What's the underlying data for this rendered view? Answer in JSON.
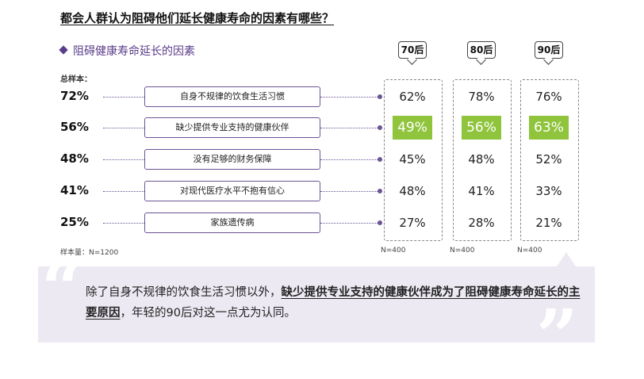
{
  "title": "都会人群认为阻碍他们延长健康寿命的因素有哪些？",
  "subtitle": "阻碍健康寿命延长的因素",
  "total_label": "总样本：",
  "total_n": "样本量：N=1200",
  "colors": {
    "accent": "#6b5496",
    "highlight": "#8fc43c",
    "quote_bg": "#ece9f2"
  },
  "chart_data": {
    "type": "table",
    "categories": [
      "自身不规律的饮食生活习惯",
      "缺少提供专业支持的健康伙伴",
      "没有足够的财务保障",
      "对现代医疗水平不抱有信心",
      "家族遗传病"
    ],
    "total": [
      "72%",
      "56%",
      "48%",
      "41%",
      "25%"
    ],
    "series": [
      {
        "name": "70后",
        "values": [
          "62%",
          "49%",
          "45%",
          "48%",
          "27%"
        ],
        "n": "N=400"
      },
      {
        "name": "80后",
        "values": [
          "78%",
          "56%",
          "48%",
          "41%",
          "28%"
        ],
        "n": "N=400"
      },
      {
        "name": "90后",
        "values": [
          "76%",
          "63%",
          "52%",
          "33%",
          "21%"
        ],
        "n": "N=400"
      }
    ],
    "highlighted_row": 1
  },
  "quote": {
    "open_mark": "“",
    "close_mark": "”",
    "part1": "除了自身不规律的饮食生活习惯以外，",
    "bold": "缺少提供专业支持的健康伙伴成为了阻碍健康寿命延长的主要原因",
    "part2": "，年轻的90后对这一点尤为认同。"
  }
}
